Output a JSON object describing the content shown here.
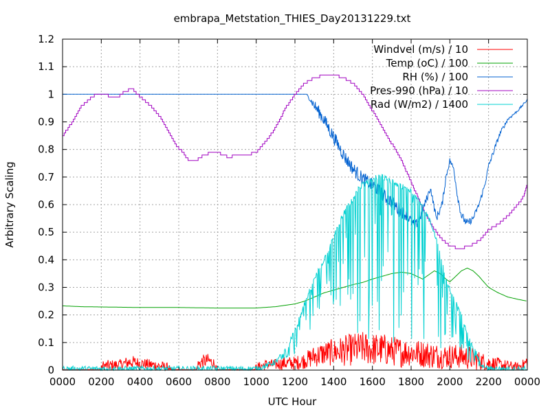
{
  "chart_data": {
    "type": "line",
    "title": "embrapa_Metstation_THIES_Day20131229.txt",
    "xlabel": "UTC Hour",
    "ylabel": "Arbitrary Scaling",
    "xlim": [
      0,
      24
    ],
    "ylim": [
      0,
      1.2
    ],
    "grid": true,
    "legend_position": "top-right",
    "x_tick_labels": [
      "0000",
      "0200",
      "0400",
      "0600",
      "0800",
      "1000",
      "1200",
      "1400",
      "1600",
      "1800",
      "2000",
      "2200",
      "0000"
    ],
    "y_tick_labels": [
      "0",
      "0.1",
      "0.2",
      "0.3",
      "0.4",
      "0.5",
      "0.6",
      "0.7",
      "0.8",
      "0.9",
      "1",
      "1.1",
      "1.2"
    ],
    "series": [
      {
        "name": "Windvel (m/s) / 10",
        "color": "#ff0000",
        "kind": "noisy",
        "x": [
          0,
          2.0,
          2.05,
          3.0,
          3.5,
          4.0,
          5.0,
          5.5,
          5.6,
          6.0,
          6.5,
          6.9,
          7.0,
          7.2,
          7.5,
          7.8,
          8.0,
          9.9,
          10.0,
          10.5,
          11.0,
          11.5,
          12.0,
          12.5,
          13.0,
          13.5,
          14.0,
          14.5,
          15.0,
          15.5,
          16.0,
          16.5,
          17.0,
          17.5,
          18.0,
          18.5,
          19.0,
          19.5,
          20.0,
          20.5,
          21.0,
          21.5,
          22.0,
          22.5,
          23.0,
          23.5,
          23.8,
          24.0
        ],
        "y": [
          0.002,
          0.002,
          0.015,
          0.02,
          0.03,
          0.025,
          0.015,
          0.01,
          0.002,
          0.002,
          0.002,
          0.002,
          0.02,
          0.03,
          0.035,
          0.025,
          0.002,
          0.002,
          0.01,
          0.02,
          0.02,
          0.025,
          0.025,
          0.035,
          0.05,
          0.06,
          0.065,
          0.07,
          0.075,
          0.08,
          0.075,
          0.075,
          0.07,
          0.065,
          0.065,
          0.06,
          0.055,
          0.05,
          0.05,
          0.05,
          0.045,
          0.035,
          0.025,
          0.02,
          0.015,
          0.012,
          0.02,
          0.03
        ],
        "amp": [
          0,
          0,
          0.02,
          0.02,
          0.025,
          0.02,
          0.02,
          0.015,
          0,
          0,
          0,
          0,
          0.02,
          0.025,
          0.025,
          0.02,
          0,
          0,
          0.015,
          0.02,
          0.02,
          0.025,
          0.025,
          0.03,
          0.04,
          0.045,
          0.05,
          0.055,
          0.06,
          0.06,
          0.06,
          0.06,
          0.055,
          0.055,
          0.05,
          0.05,
          0.05,
          0.045,
          0.045,
          0.045,
          0.045,
          0.035,
          0.03,
          0.025,
          0.02,
          0.015,
          0.02,
          0.03
        ]
      },
      {
        "name": "Temp (oC) / 100",
        "color": "#00a000",
        "kind": "smooth",
        "x": [
          0,
          1.0,
          2.0,
          3.0,
          4.0,
          5.0,
          6.0,
          7.0,
          8.0,
          9.0,
          10.0,
          11.0,
          11.5,
          12.0,
          12.5,
          13.0,
          13.5,
          14.0,
          14.5,
          15.0,
          15.5,
          16.0,
          16.5,
          17.0,
          17.5,
          18.0,
          18.3,
          18.6,
          18.9,
          19.2,
          19.5,
          19.8,
          20.0,
          20.3,
          20.6,
          20.9,
          21.2,
          21.5,
          22.0,
          22.5,
          23.0,
          23.5,
          24.0
        ],
        "y": [
          0.233,
          0.23,
          0.229,
          0.228,
          0.227,
          0.227,
          0.227,
          0.226,
          0.225,
          0.225,
          0.225,
          0.23,
          0.235,
          0.24,
          0.25,
          0.265,
          0.28,
          0.29,
          0.3,
          0.31,
          0.318,
          0.33,
          0.34,
          0.35,
          0.355,
          0.35,
          0.34,
          0.33,
          0.345,
          0.36,
          0.35,
          0.33,
          0.32,
          0.34,
          0.36,
          0.37,
          0.36,
          0.34,
          0.3,
          0.28,
          0.265,
          0.257,
          0.25
        ]
      },
      {
        "name": "RH (%) / 100",
        "color": "#0060d0",
        "kind": "noisy",
        "x": [
          0,
          12.0,
          12.6,
          13.0,
          13.4,
          13.8,
          14.2,
          14.6,
          15.0,
          15.4,
          15.8,
          16.2,
          16.6,
          17.0,
          17.4,
          17.8,
          18.2,
          18.5,
          18.8,
          19.0,
          19.3,
          19.6,
          19.8,
          20.0,
          20.2,
          20.4,
          20.6,
          20.9,
          21.2,
          21.5,
          21.8,
          22.0,
          22.3,
          22.6,
          23.0,
          23.5,
          24.0
        ],
        "y": [
          1.0,
          1.0,
          1.0,
          0.96,
          0.92,
          0.87,
          0.82,
          0.77,
          0.73,
          0.7,
          0.68,
          0.66,
          0.63,
          0.61,
          0.58,
          0.56,
          0.52,
          0.56,
          0.62,
          0.66,
          0.55,
          0.6,
          0.7,
          0.76,
          0.73,
          0.63,
          0.56,
          0.53,
          0.55,
          0.6,
          0.67,
          0.74,
          0.8,
          0.86,
          0.91,
          0.94,
          0.98
        ],
        "amp": [
          0,
          0,
          0,
          0.02,
          0.025,
          0.025,
          0.025,
          0.025,
          0.025,
          0.025,
          0.025,
          0.025,
          0.025,
          0.025,
          0.025,
          0.02,
          0.02,
          0.015,
          0.015,
          0.01,
          0.015,
          0.015,
          0.01,
          0.01,
          0.01,
          0.015,
          0.015,
          0.015,
          0.01,
          0.01,
          0.01,
          0.01,
          0.01,
          0.008,
          0.006,
          0.004,
          0.004
        ]
      },
      {
        "name": "Pres-990 (hPa) / 10",
        "color": "#a000c0",
        "kind": "step",
        "x": [
          0,
          0.5,
          1.0,
          1.5,
          1.9,
          2.2,
          2.5,
          2.8,
          3.2,
          3.6,
          4.0,
          4.5,
          5.0,
          5.5,
          5.8,
          6.2,
          6.5,
          6.9,
          7.3,
          7.7,
          8.0,
          8.3,
          8.6,
          8.9,
          9.2,
          9.5,
          10.0,
          10.5,
          11.0,
          11.5,
          12.0,
          12.5,
          13.0,
          13.5,
          14.0,
          14.5,
          15.0,
          15.5,
          16.0,
          16.5,
          17.0,
          17.5,
          18.0,
          18.5,
          19.0,
          19.5,
          19.8,
          20.0,
          20.5,
          21.0,
          21.5,
          22.0,
          22.5,
          23.0,
          23.5,
          23.8,
          24.0
        ],
        "y": [
          0.85,
          0.9,
          0.96,
          0.99,
          1.005,
          1.0,
          0.99,
          0.985,
          1.01,
          1.02,
          0.99,
          0.96,
          0.92,
          0.86,
          0.82,
          0.79,
          0.76,
          0.76,
          0.78,
          0.79,
          0.79,
          0.78,
          0.77,
          0.78,
          0.775,
          0.78,
          0.79,
          0.83,
          0.88,
          0.95,
          1.0,
          1.04,
          1.06,
          1.07,
          1.07,
          1.06,
          1.04,
          1.0,
          0.94,
          0.88,
          0.82,
          0.76,
          0.68,
          0.6,
          0.53,
          0.48,
          0.46,
          0.45,
          0.44,
          0.45,
          0.47,
          0.51,
          0.53,
          0.56,
          0.6,
          0.63,
          0.68
        ]
      },
      {
        "name": "Rad (W/m2) / 1400",
        "color": "#00d0d0",
        "kind": "spiky",
        "x": [
          0,
          10.0,
          10.5,
          11.0,
          11.4,
          11.7,
          12.0,
          12.3,
          12.6,
          12.9,
          13.2,
          13.5,
          13.8,
          14.1,
          14.4,
          14.7,
          15.0,
          15.3,
          15.6,
          15.9,
          16.2,
          16.5,
          16.8,
          17.1,
          17.4,
          17.7,
          18.0,
          18.3,
          18.6,
          18.9,
          19.2,
          19.5,
          19.8,
          20.1,
          20.4,
          20.7,
          21.0,
          21.3,
          21.6,
          22.0,
          24.0
        ],
        "y": [
          0.005,
          0.005,
          0.015,
          0.03,
          0.06,
          0.1,
          0.14,
          0.2,
          0.26,
          0.31,
          0.36,
          0.4,
          0.45,
          0.5,
          0.55,
          0.59,
          0.62,
          0.66,
          0.68,
          0.69,
          0.7,
          0.7,
          0.69,
          0.68,
          0.67,
          0.66,
          0.65,
          0.63,
          0.6,
          0.55,
          0.5,
          0.42,
          0.33,
          0.27,
          0.23,
          0.18,
          0.12,
          0.07,
          0.02,
          0.005,
          0.005
        ],
        "spike_depth": [
          0,
          0,
          0,
          0,
          0.02,
          0.05,
          0.1,
          0.12,
          0.15,
          0.15,
          0.15,
          0.15,
          0.2,
          0.3,
          0.4,
          0.45,
          0.5,
          0.55,
          0.6,
          0.6,
          0.6,
          0.6,
          0.6,
          0.6,
          0.6,
          0.6,
          0.55,
          0.5,
          0.5,
          0.45,
          0.4,
          0.35,
          0.25,
          0.2,
          0.15,
          0.12,
          0.1,
          0.05,
          0.01,
          0,
          0
        ]
      }
    ]
  }
}
